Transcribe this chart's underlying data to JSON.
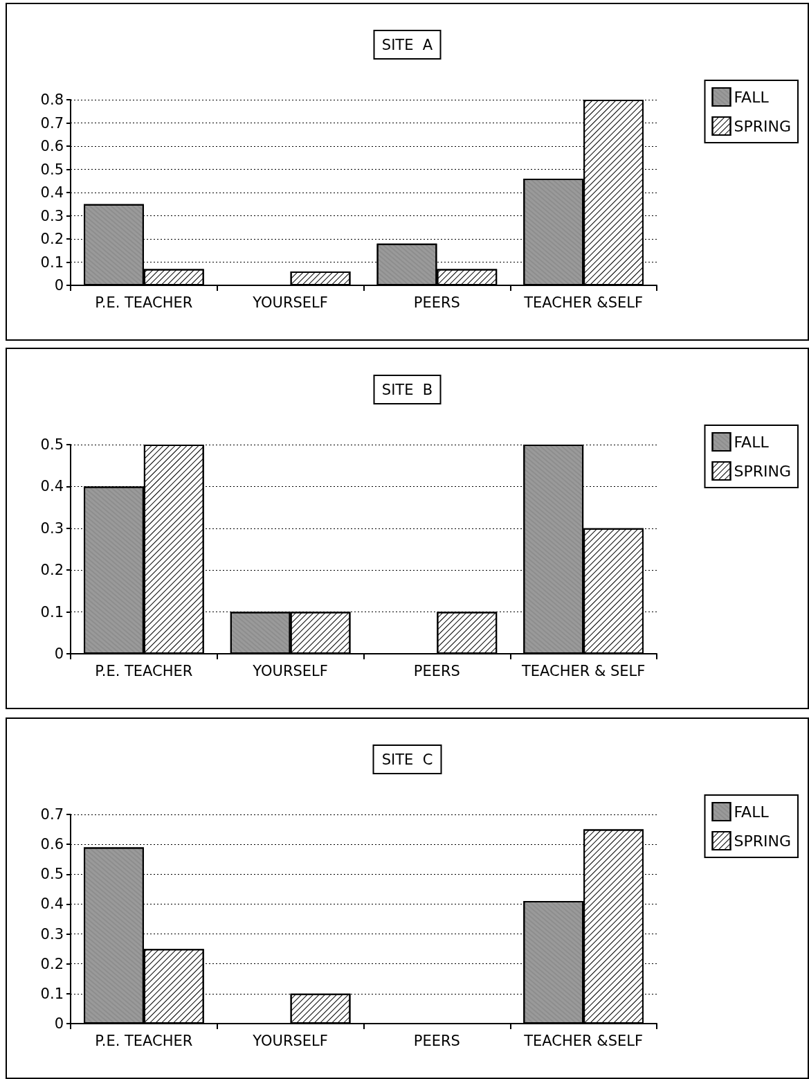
{
  "chart_data": [
    {
      "type": "bar",
      "title": "SITE  A",
      "categories": [
        "P.E. TEACHER",
        "YOURSELF",
        "PEERS",
        "TEACHER &SELF"
      ],
      "series": [
        {
          "name": "FALL",
          "color": "#9a9a9a",
          "values": [
            0.35,
            null,
            0.18,
            0.46
          ]
        },
        {
          "name": "SPRING",
          "color": "#ffffff",
          "values": [
            0.07,
            0.06,
            0.07,
            0.8
          ]
        }
      ],
      "ylim": [
        0,
        0.8
      ],
      "yticks": [
        0,
        0.1,
        0.2,
        0.3,
        0.4,
        0.5,
        0.6,
        0.7,
        0.8
      ],
      "grid": "y",
      "legend": "right"
    },
    {
      "type": "bar",
      "title": "SITE  B",
      "categories": [
        "P.E. TEACHER",
        "YOURSELF",
        "PEERS",
        "TEACHER & SELF"
      ],
      "series": [
        {
          "name": "FALL",
          "color": "#9a9a9a",
          "values": [
            0.4,
            0.1,
            null,
            0.5
          ]
        },
        {
          "name": "SPRING",
          "color": "#ffffff",
          "values": [
            0.5,
            0.1,
            0.1,
            0.3
          ]
        }
      ],
      "ylim": [
        0,
        0.5
      ],
      "yticks": [
        0,
        0.1,
        0.2,
        0.3,
        0.4,
        0.5
      ],
      "grid": "y",
      "legend": "right"
    },
    {
      "type": "bar",
      "title": "SITE  C",
      "categories": [
        "P.E. TEACHER",
        "YOURSELF",
        "PEERS",
        "TEACHER &SELF"
      ],
      "series": [
        {
          "name": "FALL",
          "color": "#9a9a9a",
          "values": [
            0.59,
            null,
            null,
            0.41
          ]
        },
        {
          "name": "SPRING",
          "color": "#ffffff",
          "values": [
            0.25,
            0.1,
            null,
            0.65
          ]
        }
      ],
      "ylim": [
        0,
        0.7
      ],
      "yticks": [
        0,
        0.1,
        0.2,
        0.3,
        0.4,
        0.5,
        0.6,
        0.7
      ],
      "grid": "y",
      "legend": "right"
    }
  ]
}
